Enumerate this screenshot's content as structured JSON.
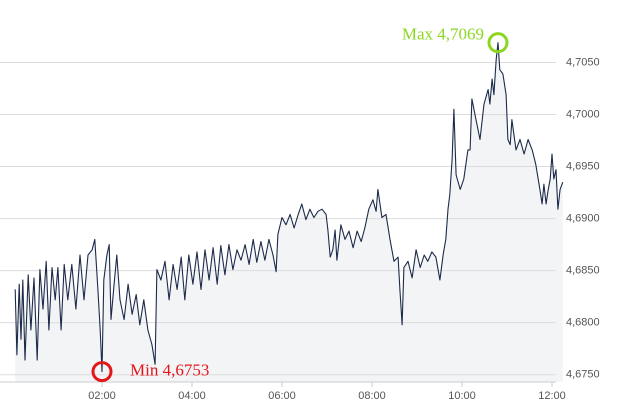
{
  "chart_data": {
    "type": "area",
    "x": [
      0.07,
      0.11,
      0.16,
      0.2,
      0.24,
      0.29,
      0.36,
      0.42,
      0.49,
      0.56,
      0.62,
      0.69,
      0.76,
      0.82,
      0.89,
      0.96,
      1.02,
      1.09,
      1.16,
      1.24,
      1.33,
      1.42,
      1.51,
      1.6,
      1.69,
      1.78,
      1.84,
      1.91,
      1.96,
      2.0,
      2.04,
      2.11,
      2.16,
      2.2,
      2.27,
      2.33,
      2.4,
      2.49,
      2.58,
      2.67,
      2.76,
      2.84,
      2.93,
      3.02,
      3.11,
      3.18,
      3.22,
      3.31,
      3.4,
      3.49,
      3.58,
      3.67,
      3.76,
      3.84,
      3.93,
      4.02,
      4.11,
      4.2,
      4.29,
      4.38,
      4.47,
      4.56,
      4.64,
      4.73,
      4.82,
      4.91,
      5.0,
      5.09,
      5.18,
      5.27,
      5.36,
      5.44,
      5.53,
      5.62,
      5.71,
      5.8,
      5.87,
      5.91,
      6.0,
      6.09,
      6.18,
      6.27,
      6.36,
      6.44,
      6.53,
      6.62,
      6.71,
      6.8,
      6.89,
      6.98,
      7.02,
      7.07,
      7.13,
      7.18,
      7.22,
      7.31,
      7.4,
      7.49,
      7.58,
      7.67,
      7.76,
      7.84,
      7.93,
      8.02,
      8.09,
      8.13,
      8.22,
      8.31,
      8.4,
      8.49,
      8.58,
      8.62,
      8.67,
      8.71,
      8.8,
      8.89,
      8.98,
      9.07,
      9.16,
      9.24,
      9.33,
      9.42,
      9.51,
      9.58,
      9.64,
      9.69,
      9.73,
      9.78,
      9.82,
      9.87,
      9.96,
      10.04,
      10.13,
      10.18,
      10.22,
      10.31,
      10.4,
      10.49,
      10.58,
      10.62,
      10.67,
      10.71,
      10.76,
      10.8,
      10.84,
      10.91,
      10.98,
      11.02,
      11.07,
      11.11,
      11.2,
      11.29,
      11.38,
      11.47,
      11.56,
      11.64,
      11.73,
      11.78,
      11.82,
      11.87,
      11.91,
      11.96,
      12.0,
      12.04,
      12.09,
      12.13,
      12.18,
      12.24
    ],
    "values": [
      4.6832,
      4.6769,
      4.6837,
      4.6784,
      4.6841,
      4.6764,
      4.6846,
      4.6793,
      4.6843,
      4.6764,
      4.6851,
      4.6813,
      4.6859,
      4.6793,
      4.6853,
      4.6822,
      4.6853,
      4.6793,
      4.6856,
      4.6822,
      4.6856,
      4.6813,
      4.6865,
      4.6822,
      4.6865,
      4.687,
      4.688,
      4.6832,
      4.6793,
      4.6753,
      4.6841,
      4.6865,
      4.6875,
      4.6803,
      4.6837,
      4.6865,
      4.6822,
      4.6803,
      4.6837,
      4.6808,
      4.6827,
      4.6798,
      4.6822,
      4.6793,
      4.6779,
      4.676,
      4.6851,
      4.6841,
      4.6859,
      4.6822,
      4.6856,
      4.6832,
      4.6863,
      4.6822,
      4.6865,
      4.6837,
      4.6868,
      4.6832,
      4.687,
      4.6841,
      4.6872,
      4.6837,
      4.6874,
      4.6846,
      4.6875,
      4.6851,
      4.687,
      4.686,
      4.6875,
      4.6856,
      4.688,
      4.6858,
      4.6878,
      4.686,
      4.688,
      4.6865,
      4.6849,
      4.6885,
      4.6901,
      4.6894,
      4.6904,
      4.6891,
      4.6904,
      4.6914,
      4.6899,
      4.6909,
      4.6901,
      4.6907,
      4.6909,
      4.6904,
      4.6889,
      4.6863,
      4.687,
      4.6889,
      4.686,
      4.6894,
      4.688,
      4.6888,
      4.6872,
      4.6888,
      4.6878,
      4.6891,
      4.6909,
      4.6918,
      4.6907,
      4.6928,
      4.6901,
      4.6904,
      4.688,
      4.6859,
      4.6863,
      4.6832,
      4.6798,
      4.6853,
      4.6859,
      4.6843,
      4.687,
      4.6853,
      4.6865,
      4.6859,
      4.6868,
      4.6863,
      4.6841,
      4.6865,
      4.688,
      4.6909,
      4.6923,
      4.6957,
      4.7005,
      4.6942,
      4.6928,
      4.6938,
      4.6966,
      4.6966,
      4.7015,
      4.6995,
      4.6976,
      4.701,
      4.7024,
      4.701,
      4.7034,
      4.7019,
      4.7053,
      4.7069,
      4.7043,
      4.7039,
      4.7019,
      4.6976,
      4.6971,
      4.6995,
      4.6966,
      4.6976,
      4.6962,
      4.6976,
      4.6966,
      4.6952,
      4.6928,
      4.6914,
      4.6933,
      4.6914,
      4.6926,
      4.6938,
      4.6962,
      4.6938,
      4.6947,
      4.6909,
      4.6928,
      4.6935
    ],
    "color": "#1c2b4a",
    "fill": "#f3f4f6",
    "xlim": [
      0,
      12.3
    ],
    "xticks": [
      {
        "value": 2,
        "label": "02:00"
      },
      {
        "value": 4,
        "label": "04:00"
      },
      {
        "value": 6,
        "label": "06:00"
      },
      {
        "value": 8,
        "label": "08:00"
      },
      {
        "value": 10,
        "label": "10:00"
      },
      {
        "value": 12,
        "label": "12:00"
      }
    ],
    "ylim": [
      4.6743,
      4.711
    ],
    "yticks": [
      {
        "value": 4.675,
        "label": "4,6750"
      },
      {
        "value": 4.68,
        "label": "4,6800"
      },
      {
        "value": 4.685,
        "label": "4,6850"
      },
      {
        "value": 4.69,
        "label": "4,6900"
      },
      {
        "value": 4.695,
        "label": "4,6950"
      },
      {
        "value": 4.7,
        "label": "4,7000"
      },
      {
        "value": 4.705,
        "label": "4,7050"
      }
    ],
    "grid": true,
    "annotations": [
      {
        "text": "Max 4,7069",
        "x": 10.8,
        "y": 4.7069,
        "color": "#8cd622"
      },
      {
        "text": "Min 4,6753",
        "x": 2.0,
        "y": 4.6753,
        "color": "#e3161b"
      }
    ]
  }
}
